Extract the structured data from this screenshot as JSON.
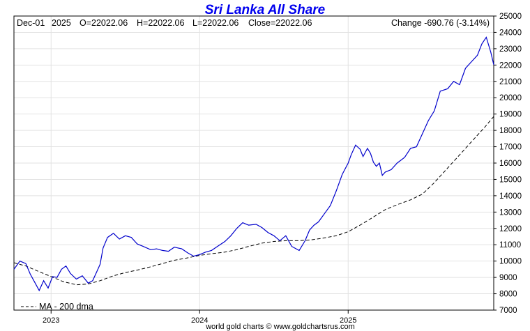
{
  "chart_data": {
    "type": "line",
    "title": "Sri Lanka All Share",
    "info": {
      "date": "Dec-01",
      "year": "2025",
      "open": "O=22022.06",
      "high": "H=22022.06",
      "low": "L=22022.06",
      "close": "Close=22022.06",
      "change": "Change -690.76 (-3.14%)"
    },
    "ylim": [
      7000,
      25000
    ],
    "yticks": [
      7000,
      8000,
      9000,
      10000,
      11000,
      12000,
      13000,
      14000,
      15000,
      16000,
      17000,
      18000,
      19000,
      20000,
      21000,
      22000,
      23000,
      24000,
      25000
    ],
    "xlim": [
      2022.75,
      2025.98
    ],
    "xticks": [
      {
        "label": "2023",
        "value": 2023.0
      },
      {
        "label": "2024",
        "value": 2024.0
      },
      {
        "label": "2025",
        "value": 2025.0
      }
    ],
    "grid": true,
    "legend_position": "bottom-left",
    "series": [
      {
        "name": "",
        "color": "#0000cc",
        "style": "solid",
        "x": [
          2022.75,
          2022.79,
          2022.83,
          2022.86,
          2022.89,
          2022.92,
          2022.95,
          2022.98,
          2023.01,
          2023.04,
          2023.07,
          2023.1,
          2023.13,
          2023.17,
          2023.21,
          2023.25,
          2023.28,
          2023.31,
          2023.33,
          2023.35,
          2023.38,
          2023.42,
          2023.46,
          2023.5,
          2023.54,
          2023.58,
          2023.62,
          2023.67,
          2023.71,
          2023.75,
          2023.79,
          2023.83,
          2023.88,
          2023.92,
          2023.96,
          2024.0,
          2024.04,
          2024.08,
          2024.12,
          2024.17,
          2024.21,
          2024.25,
          2024.29,
          2024.33,
          2024.38,
          2024.42,
          2024.46,
          2024.5,
          2024.54,
          2024.58,
          2024.62,
          2024.67,
          2024.71,
          2024.74,
          2024.77,
          2024.8,
          2024.84,
          2024.88,
          2024.92,
          2024.96,
          2025.0,
          2025.02,
          2025.05,
          2025.08,
          2025.1,
          2025.13,
          2025.15,
          2025.17,
          2025.19,
          2025.21,
          2025.23,
          2025.25,
          2025.29,
          2025.33,
          2025.38,
          2025.42,
          2025.46,
          2025.5,
          2025.54,
          2025.58,
          2025.62,
          2025.67,
          2025.71,
          2025.75,
          2025.79,
          2025.83,
          2025.87,
          2025.9,
          2025.93,
          2025.96,
          2025.98
        ],
        "y": [
          9500,
          10000,
          9850,
          9200,
          8700,
          8200,
          8800,
          8350,
          9050,
          9000,
          9500,
          9700,
          9250,
          8900,
          9100,
          8650,
          8800,
          9400,
          9800,
          10800,
          11450,
          11700,
          11350,
          11550,
          11450,
          11050,
          10900,
          10700,
          10750,
          10650,
          10600,
          10850,
          10750,
          10500,
          10300,
          10400,
          10550,
          10650,
          10900,
          11200,
          11550,
          12000,
          12350,
          12200,
          12250,
          12050,
          11750,
          11550,
          11250,
          11550,
          10900,
          10650,
          11250,
          11900,
          12200,
          12400,
          12900,
          13400,
          14300,
          15300,
          16000,
          16500,
          17100,
          16850,
          16400,
          16900,
          16600,
          16050,
          15800,
          16000,
          15250,
          15450,
          15600,
          16000,
          16350,
          16900,
          17000,
          17800,
          18600,
          19200,
          20400,
          20550,
          21000,
          20800,
          21800,
          22200,
          22600,
          23300,
          23700,
          22800,
          22022
        ]
      },
      {
        "name": "MA - 200 dma",
        "color": "#000000",
        "style": "dashed",
        "x": [
          2022.75,
          2022.83,
          2022.92,
          2023.0,
          2023.08,
          2023.17,
          2023.25,
          2023.33,
          2023.42,
          2023.5,
          2023.58,
          2023.67,
          2023.75,
          2023.83,
          2023.92,
          2024.0,
          2024.08,
          2024.17,
          2024.25,
          2024.33,
          2024.42,
          2024.5,
          2024.58,
          2024.67,
          2024.75,
          2024.83,
          2024.92,
          2025.0,
          2025.08,
          2025.17,
          2025.25,
          2025.33,
          2025.42,
          2025.5,
          2025.58,
          2025.67,
          2025.75,
          2025.83,
          2025.92,
          2025.98
        ],
        "y": [
          9900,
          9700,
          9350,
          9050,
          8750,
          8550,
          8600,
          8800,
          9100,
          9300,
          9450,
          9650,
          9850,
          10050,
          10200,
          10350,
          10450,
          10550,
          10700,
          10900,
          11100,
          11200,
          11250,
          11250,
          11300,
          11400,
          11550,
          11800,
          12200,
          12700,
          13150,
          13450,
          13750,
          14100,
          14800,
          15700,
          16500,
          17300,
          18200,
          18850
        ]
      }
    ]
  },
  "legend_label": "MA - 200 dma",
  "footer": "world gold charts © www.goldchartsrus.com"
}
